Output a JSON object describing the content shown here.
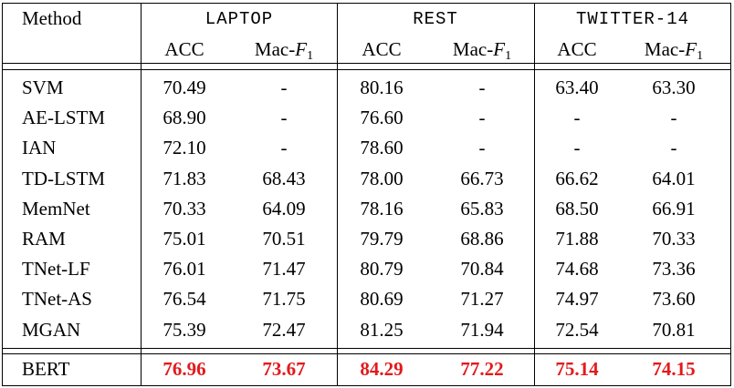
{
  "table": {
    "header_method": "Method",
    "datasets": [
      "LAPTOP",
      "REST",
      "TWITTER-14"
    ],
    "metric_acc": "ACC",
    "metric_f1_prefix": "Mac-",
    "metric_f1_var": "F",
    "metric_f1_sub": "1",
    "rows": [
      {
        "method": "SVM",
        "vals": [
          "70.49",
          "-",
          "80.16",
          "-",
          "63.40",
          "63.30"
        ]
      },
      {
        "method": "AE-LSTM",
        "vals": [
          "68.90",
          "-",
          "76.60",
          "-",
          "-",
          "-"
        ]
      },
      {
        "method": "IAN",
        "vals": [
          "72.10",
          "-",
          "78.60",
          "-",
          "-",
          "-"
        ]
      },
      {
        "method": "TD-LSTM",
        "vals": [
          "71.83",
          "68.43",
          "78.00",
          "66.73",
          "66.62",
          "64.01"
        ]
      },
      {
        "method": "MemNet",
        "vals": [
          "70.33",
          "64.09",
          "78.16",
          "65.83",
          "68.50",
          "66.91"
        ]
      },
      {
        "method": "RAM",
        "vals": [
          "75.01",
          "70.51",
          "79.79",
          "68.86",
          "71.88",
          "70.33"
        ]
      },
      {
        "method": "TNet-LF",
        "vals": [
          "76.01",
          "71.47",
          "80.79",
          "70.84",
          "74.68",
          "73.36"
        ]
      },
      {
        "method": "TNet-AS",
        "vals": [
          "76.54",
          "71.75",
          "80.69",
          "71.27",
          "74.97",
          "73.60"
        ]
      },
      {
        "method": "MGAN",
        "vals": [
          "75.39",
          "72.47",
          "81.25",
          "71.94",
          "72.54",
          "70.81"
        ]
      }
    ],
    "bert_row": {
      "method": "BERT",
      "vals": [
        "76.96",
        "73.67",
        "84.29",
        "77.22",
        "75.14",
        "74.15"
      ]
    },
    "highlight_color": "#e31a1c"
  }
}
